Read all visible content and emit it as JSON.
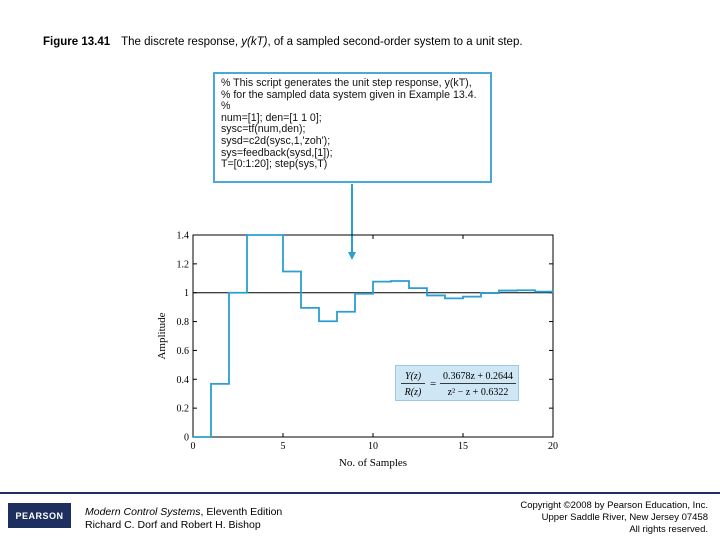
{
  "caption": {
    "figure_label": "Figure 13.41",
    "text_prefix": "The discrete response, ",
    "text_emph": "y(kT)",
    "text_suffix": ", of a sampled second-order system to a unit step."
  },
  "code_lines": [
    "% This script generates the unit step response, y(kT),",
    "% for the sampled data system given in Example 13.4.",
    "%",
    "num=[1]; den=[1 1 0];",
    "sysc=tf(num,den);",
    "sysd=c2d(sysc,1,'zoh');",
    "sys=feedback(sysd,[1]);",
    "T=[0:1:20]; step(sys,T)"
  ],
  "formula": {
    "lhs_num": "Y(z)",
    "lhs_den": "R(z)",
    "equals": "=",
    "rhs_num": "0.3678z + 0.2644",
    "rhs_den": "z² − z + 0.6322"
  },
  "chart_data": {
    "type": "line",
    "step_style": "zero-order-hold",
    "xlabel": "No. of Samples",
    "ylabel": "Amplitude",
    "xlim": [
      0,
      20
    ],
    "ylim": [
      0,
      1.4
    ],
    "xticks": [
      "0",
      "5",
      "10",
      "15",
      "20"
    ],
    "yticks": [
      "0",
      "0.2",
      "0.4",
      "0.6",
      "0.8",
      "1",
      "1.2",
      "1.4"
    ],
    "reference_line": 1,
    "series": [
      {
        "color": "#2a9fd0",
        "x": [
          0,
          1,
          2,
          3,
          4,
          5,
          6,
          7,
          8,
          9,
          10,
          11,
          12,
          13,
          14,
          15,
          16,
          17,
          18,
          19,
          20
        ],
        "y": [
          0,
          0.368,
          1.0,
          1.4,
          1.4,
          1.147,
          0.895,
          0.802,
          0.868,
          0.993,
          1.077,
          1.081,
          1.032,
          0.981,
          0.961,
          0.973,
          0.997,
          1.015,
          1.017,
          1.007,
          0.996
        ]
      }
    ]
  },
  "footer": {
    "logo_text": "PEARSON",
    "book_title": "Modern Control Systems",
    "book_edition": ", Eleventh Edition",
    "authors": "Richard C. Dorf and Robert H. Bishop",
    "copyright_1": "Copyright ©2008 by Pearson Education, Inc.",
    "copyright_2": "Upper Saddle River, New Jersey 07458",
    "copyright_3": "All rights reserved."
  }
}
